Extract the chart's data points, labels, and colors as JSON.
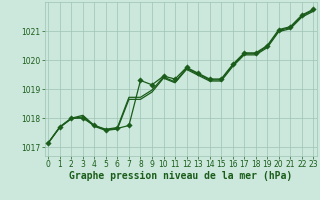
{
  "xlabel": "Graphe pression niveau de la mer (hPa)",
  "background_color": "#cce8dc",
  "grid_color": "#9dc4b4",
  "line_color": "#1a5c1a",
  "ylim": [
    1016.7,
    1022.0
  ],
  "xlim": [
    -0.3,
    23.3
  ],
  "yticks": [
    1017,
    1018,
    1019,
    1020,
    1021
  ],
  "xticks": [
    0,
    1,
    2,
    3,
    4,
    5,
    6,
    7,
    8,
    9,
    10,
    11,
    12,
    13,
    14,
    15,
    16,
    17,
    18,
    19,
    20,
    21,
    22,
    23
  ],
  "series": [
    {
      "y": [
        1017.15,
        1017.7,
        1018.0,
        1018.05,
        1017.75,
        1017.6,
        1017.65,
        1017.75,
        1019.3,
        1018.95,
        1019.15,
        1019.2,
        1019.7,
        1019.55,
        1019.35,
        1019.35,
        1019.85,
        1020.25,
        1020.25,
        1020.5,
        1021.05,
        1021.15,
        1021.55,
        1021.75
      ],
      "has_markers": true
    },
    {
      "y": [
        1017.15,
        1017.7,
        1018.0,
        1018.05,
        1017.75,
        1017.6,
        1017.65,
        1018.75,
        1018.75,
        1019.0,
        1019.45,
        1019.35,
        1019.75,
        1019.55,
        1019.4,
        1019.4,
        1019.9,
        1020.3,
        1020.3,
        1020.5,
        1021.1,
        1021.2,
        1021.6,
        1021.85
      ],
      "has_markers": true
    },
    {
      "y": [
        1017.15,
        1017.7,
        1018.0,
        1018.05,
        1017.75,
        1017.6,
        1017.65,
        1017.75,
        1018.75,
        1019.0,
        1019.45,
        1019.35,
        1019.75,
        1019.55,
        1019.4,
        1019.4,
        1019.9,
        1020.3,
        1020.3,
        1020.5,
        1021.1,
        1021.2,
        1021.6,
        1021.85
      ],
      "has_markers": false
    }
  ],
  "xlabel_fontsize": 7.0,
  "tick_fontsize": 5.5,
  "marker_size": 2.8,
  "linewidth": 0.9
}
